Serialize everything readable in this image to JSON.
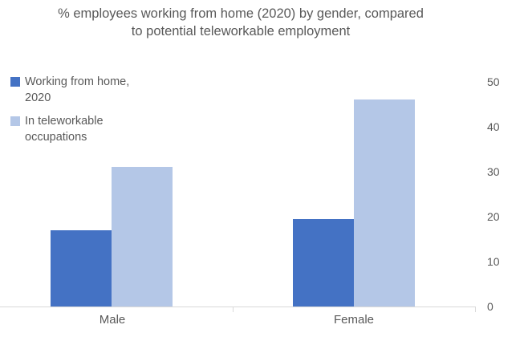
{
  "header": {
    "title_lines": [
      "% employees working from home (2020) by gender, compared",
      "to potential teleworkable employment"
    ]
  },
  "legend": {
    "position": "top-left",
    "items": [
      {
        "label": "Working from home, 2020",
        "color": "#4472C4"
      },
      {
        "label": "In teleworkable occupations",
        "color": "#B4C7E7"
      }
    ]
  },
  "chart_data": {
    "type": "bar",
    "title": "% employees working from home (2020) by gender, compared to potential teleworkable employment",
    "categories": [
      "Male",
      "Female"
    ],
    "series": [
      {
        "name": "Working from home, 2020",
        "color": "#4472C4",
        "values": [
          17,
          19.5
        ]
      },
      {
        "name": "In teleworkable occupations",
        "color": "#B4C7E7",
        "values": [
          31,
          46
        ]
      }
    ],
    "xlabel": "",
    "ylabel": "",
    "ylim": [
      0,
      50
    ],
    "yticks": [
      0,
      10,
      20,
      30,
      40,
      50
    ],
    "grid": false,
    "legend_position": "top-left",
    "y_axis_side": "right"
  },
  "colors": {
    "axis_line": "#D9D9D9",
    "text": "#595959"
  }
}
